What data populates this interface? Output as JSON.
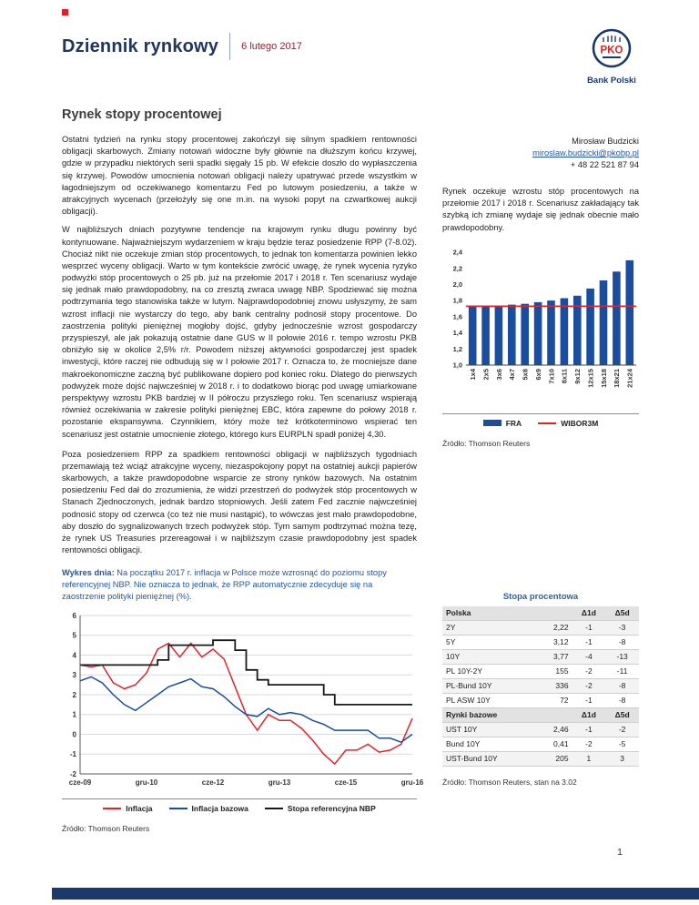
{
  "header": {
    "title": "Dziennik rynkowy",
    "date": "6 lutego 2017",
    "logo_letters": "PKO",
    "logo_text": "Bank Polski"
  },
  "section_title": "Rynek stopy procentowej",
  "colors": {
    "navy": "#1b3a6b",
    "blue_text": "#2456a4",
    "red": "#d8232a",
    "bar_blue": "#1a4d9e"
  },
  "main": {
    "paragraphs": [
      "Ostatni tydzień na rynku stopy procentowej zakończył się silnym spadkiem rentowności obligacji skarbowych. Zmiany notowań widoczne były głównie na dłuższym końcu krzywej, gdzie w przypadku niektórych serii spadki sięgały 15 pb. W efekcie doszło do wypłaszczenia się krzywej. Powodów umocnienia notowań obligacji należy upatrywać przede wszystkim w łagodniejszym od oczekiwanego komentarzu Fed po lutowym posiedzeniu, a także w atrakcyjnych wycenach (przełożyły się one m.in. na wysoki popyt na czwartkowej aukcji obligacji).",
      "W najbliższych dniach pozytywne tendencje na krajowym rynku długu powinny być kontynuowane. Najważniejszym wydarzeniem w kraju będzie teraz posiedzenie RPP (7-8.02). Chociaż nikt nie oczekuje zmian stóp procentowych, to jednak ton komentarza powinien lekko wesprzeć wyceny obligacji. Warto w tym kontekście zwrócić uwagę, że rynek wycenia ryzyko podwyżki stóp procentowych o 25 pb. już na przełomie 2017 i 2018 r. Ten scenariusz wydaje się jednak mało prawdopodobny, na co zresztą zwraca uwagę NBP. Spodziewać się można podtrzymania tego stanowiska także w lutym. Najprawdopodobniej znowu usłyszymy, że sam wzrost inflacji nie wystarczy do tego, aby bank centralny podnosił stopy procentowe. Do zaostrzenia polityki pieniężnej mogłoby dojść, gdyby jednocześnie wzrost gospodarczy przyspieszył, ale jak pokazują ostatnie dane GUS w II połowie 2016 r. tempo wzrostu PKB obniżyło się w okolice 2,5% r/r. Powodem niższej aktywności gospodarczej jest spadek inwestycji, które raczej nie odbudują się w I połowie 2017 r. Oznacza to, że mocniejsze dane makroekonomiczne zaczną być publikowane dopiero pod koniec roku. Dlatego do pierwszych podwyżek może dojść najwcześniej w 2018 r. i to dodatkowo biorąc pod uwagę umiarkowane perspektywy wzrostu PKB bardziej w II półroczu przyszłego roku. Ten scenariusz wspierają również oczekiwania w zakresie polityki pieniężnej EBC, która zapewne do połowy 2018 r. pozostanie ekspansywna. Czynnikiem, który może też krótkoterminowo wspierać ten scenariusz jest ostatnie umocnienie złotego, którego kurs EURPLN spadł poniżej 4,30.",
      "Poza posiedzeniem RPP za spadkiem rentowności obligacji w najbliższych tygodniach przemawiają też wciąż atrakcyjne wyceny, niezaspokojony popyt na ostatniej aukcji papierów skarbowych, a także prawdopodobne wsparcie ze strony rynków bazowych. Na ostatnim posiedzeniu Fed dał do zrozumienia, że widzi przestrzeń do podwyżek stóp procentowych w Stanach Zjednoczonych, jednak bardzo stopniowych. Jeśli zatem Fed zacznie najwcześniej podnosić stopy od czerwca (co też nie musi nastąpić), to wówczas jest mało prawdopodobne, aby doszło do sygnalizowanych trzech podwyżek stóp. Tym samym podtrzymać można tezę, że rynek US Treasuries przereagował i w najbliższym czasie prawdopodobny jest spadek rentowności obligacji."
    ]
  },
  "sidebar": {
    "author": {
      "name": "Mirosław Budzicki",
      "email": "miroslaw.budzicki@pkobp.pl",
      "phone": "+ 48 22 521 87 94"
    },
    "summary": "Rynek oczekuje wzrostu stóp procentowych na przełomie 2017 i 2018 r. Scenariusz zakładający tak szybką ich zmianę wydaje się jednak obecnie mało prawdopodobny.",
    "chart_source": "Źródło: Thomson Reuters",
    "table": {
      "title": "Stopa procentowa",
      "sections": [
        {
          "header": [
            "Polska",
            "Δ1d",
            "Δ5d"
          ],
          "rows": [
            [
              "2Y",
              "2,22",
              "-1",
              "-3"
            ],
            [
              "5Y",
              "3,12",
              "-1",
              "-8"
            ],
            [
              "10Y",
              "3,77",
              "-4",
              "-13"
            ],
            [
              "PL 10Y-2Y",
              "155",
              "-2",
              "-11"
            ],
            [
              "PL-Bund 10Y",
              "336",
              "-2",
              "-8"
            ],
            [
              "PL ASW 10Y",
              "72",
              "-1",
              "-8"
            ]
          ]
        },
        {
          "header": [
            "Rynki bazowe",
            "Δ1d",
            "Δ5d"
          ],
          "rows": [
            [
              "UST 10Y",
              "2,46",
              "-1",
              "-2"
            ],
            [
              "Bund 10Y",
              "0,41",
              "-2",
              "-5"
            ],
            [
              "UST-Bund 10Y",
              "205",
              "1",
              "3"
            ]
          ]
        }
      ],
      "source": "Źródło: Thomson Reuters, stan na 3.02"
    }
  },
  "chart_day": {
    "caption_label": "Wykres dnia:",
    "caption_text": " Na początku 2017 r. inflacja w Polsce może wzrosnąć do poziomu stopy referencyjnej NBP. Nie oznacza to jednak, że RPP automatycznie zdecyduje się na zaostrzenie polityki pieniężnej (%).",
    "source": "Źródło: Thomson Reuters"
  },
  "footer": {
    "page_number": "1"
  },
  "chart_data": [
    {
      "id": "fra",
      "type": "bar",
      "title": "",
      "categories": [
        "1x4",
        "2x5",
        "3x6",
        "4x7",
        "5x8",
        "6x9",
        "7x10",
        "8x11",
        "9x12",
        "12x15",
        "15x18",
        "18x21",
        "21x24"
      ],
      "series": [
        {
          "name": "FRA",
          "type": "bar",
          "color": "#1a4d9e",
          "values": [
            1.73,
            1.73,
            1.74,
            1.75,
            1.76,
            1.78,
            1.8,
            1.83,
            1.86,
            1.95,
            2.05,
            2.16,
            2.3
          ]
        },
        {
          "name": "WIBOR3M",
          "type": "line",
          "color": "#e0242c",
          "values": [
            1.73,
            1.73,
            1.73,
            1.73,
            1.73,
            1.73,
            1.73,
            1.73,
            1.73,
            1.73,
            1.73,
            1.73,
            1.73
          ]
        }
      ],
      "ylim": [
        1.0,
        2.4
      ],
      "yticks": [
        "1,0",
        "1,2",
        "1,4",
        "1,6",
        "1,8",
        "2,0",
        "2,2",
        "2,4"
      ],
      "legend_position": "bottom",
      "grid": false
    },
    {
      "id": "inflation",
      "type": "line",
      "title": "",
      "x_labels": [
        "cze-09",
        "gru-10",
        "cze-12",
        "gru-13",
        "cze-15",
        "gru-16"
      ],
      "ylim": [
        -2,
        6
      ],
      "yticks": [
        6,
        5,
        4,
        3,
        2,
        1,
        0,
        -1,
        -2
      ],
      "grid": true,
      "legend_position": "bottom",
      "series": [
        {
          "name": "Inflacja",
          "color": "#e0242c",
          "type": "line",
          "values": [
            3.5,
            3.4,
            3.5,
            2.6,
            2.3,
            2.5,
            3.1,
            4.3,
            4.6,
            3.9,
            4.6,
            3.9,
            4.3,
            3.8,
            2.4,
            1.0,
            0.2,
            1.0,
            0.7,
            0.7,
            0.3,
            -0.3,
            -1.0,
            -1.5,
            -0.8,
            -0.8,
            -0.5,
            -0.9,
            -0.8,
            -0.5,
            0.8
          ]
        },
        {
          "name": "Inflacja bazowa",
          "color": "#1a4d9e",
          "type": "line",
          "values": [
            2.7,
            2.9,
            2.6,
            2.0,
            1.5,
            1.2,
            1.6,
            2.0,
            2.4,
            2.6,
            2.8,
            2.4,
            2.3,
            1.9,
            1.4,
            1.0,
            0.9,
            1.3,
            1.0,
            1.1,
            1.0,
            0.7,
            0.5,
            0.2,
            0.2,
            0.2,
            0.2,
            -0.2,
            -0.2,
            -0.4,
            0.0
          ]
        },
        {
          "name": "Stopa referencyjna NBP",
          "color": "#1a1a1a",
          "type": "line",
          "step": true,
          "values": [
            3.5,
            3.5,
            3.5,
            3.5,
            3.5,
            3.5,
            3.5,
            3.75,
            4.5,
            4.5,
            4.5,
            4.5,
            4.75,
            4.75,
            4.25,
            3.25,
            2.75,
            2.5,
            2.5,
            2.5,
            2.5,
            2.5,
            2.0,
            1.5,
            1.5,
            1.5,
            1.5,
            1.5,
            1.5,
            1.5,
            1.5
          ]
        }
      ]
    }
  ]
}
